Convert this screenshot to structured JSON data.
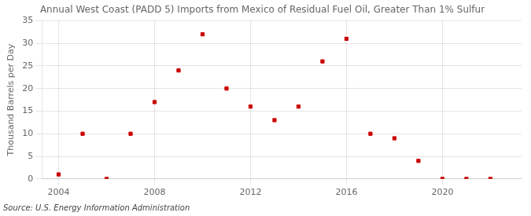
{
  "chart_data": {
    "type": "scatter",
    "title": "Annual West Coast (PADD 5) Imports from Mexico of Residual Fuel Oil, Greater Than 1% Sulfur",
    "ylabel": "Thousand Barrels per Day",
    "source": "Source: U.S. Energy Information Administration",
    "x": [
      2004,
      2005,
      2006,
      2007,
      2008,
      2009,
      2010,
      2011,
      2012,
      2013,
      2014,
      2015,
      2016,
      2017,
      2018,
      2019,
      2020,
      2021,
      2022
    ],
    "values": [
      1.0,
      10.0,
      0.0,
      10.0,
      17.0,
      24.0,
      32.0,
      20.0,
      16.0,
      13.0,
      16.0,
      26.0,
      31.0,
      10.0,
      9.0,
      4.0,
      0.0,
      0.0,
      0.0
    ],
    "color": "#cc0000",
    "marker": "square",
    "xlim": [
      2003.3,
      2023.3
    ],
    "xticks": [
      2004,
      2008,
      2012,
      2016,
      2020
    ],
    "ylim": [
      0,
      35
    ],
    "yticks": [
      0,
      5,
      10,
      15,
      20,
      25,
      30,
      35
    ],
    "grid": true
  }
}
